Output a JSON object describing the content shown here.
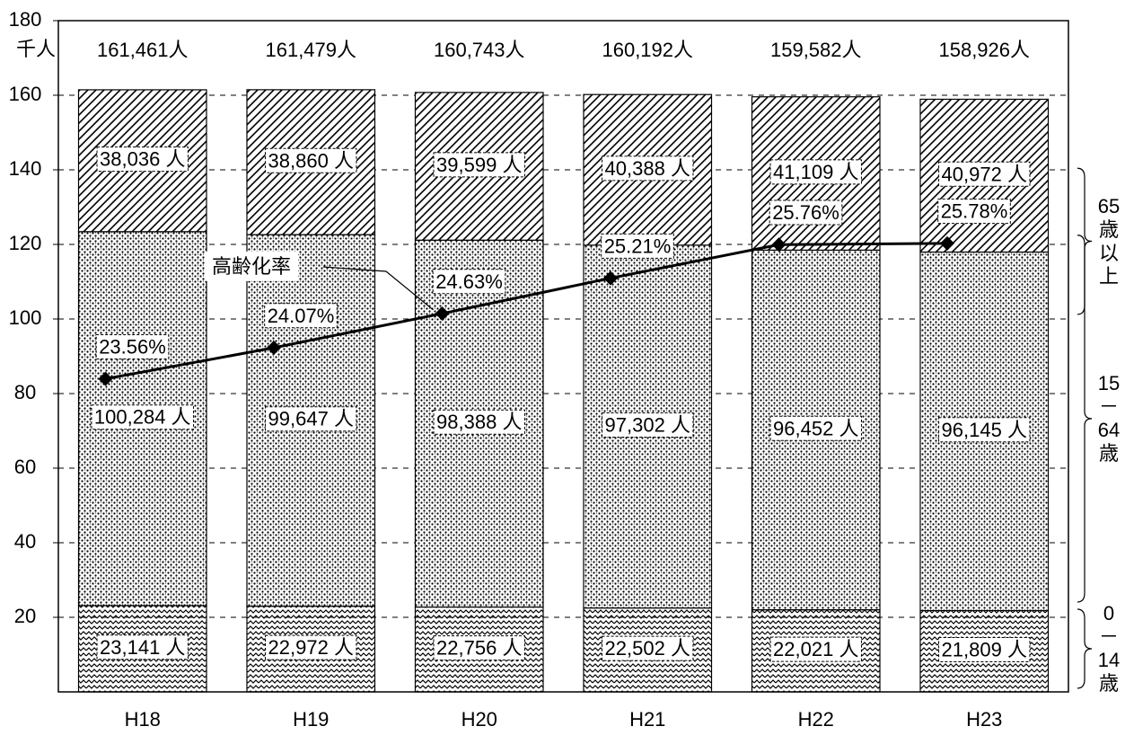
{
  "chart_data": {
    "type": "bar",
    "stacked": true,
    "y_unit_label": "千人",
    "categories": [
      "H18",
      "H19",
      "H20",
      "H21",
      "H22",
      "H23"
    ],
    "series": [
      {
        "name": "0－14歳",
        "color": "#000000",
        "values": [
          23.141,
          22.972,
          22.756,
          22.502,
          22.021,
          21.809
        ],
        "value_labels": [
          "23,141 人",
          "22,972 人",
          "22,756 人",
          "22,502 人",
          "22,021 人",
          "21,809 人"
        ]
      },
      {
        "name": "15－64歳",
        "color": "#000000",
        "values": [
          100.284,
          99.647,
          98.388,
          97.302,
          96.452,
          96.145
        ],
        "value_labels": [
          "100,284 人",
          "99,647 人",
          "98,388 人",
          "97,302 人",
          "96,452 人",
          "96,145 人"
        ]
      },
      {
        "name": "65歳以上",
        "color": "#000000",
        "values": [
          38.036,
          38.86,
          39.599,
          40.388,
          41.109,
          40.972
        ],
        "value_labels": [
          "38,036 人",
          "38,860 人",
          "39,599 人",
          "40,388 人",
          "41,109 人",
          "40,972 人"
        ]
      },
      {
        "name": "高齢化率",
        "type": "line",
        "axis": "y2",
        "color": "#000000",
        "values": [
          23.56,
          24.07,
          24.63,
          25.21,
          25.76,
          25.78
        ],
        "value_labels": [
          "23.56%",
          "24.07%",
          "24.63%",
          "25.21%",
          "25.76%",
          "25.78%"
        ]
      }
    ],
    "totals": [
      161.461,
      161.479,
      160.743,
      160.192,
      159.582,
      158.926
    ],
    "total_labels": [
      "161,461人",
      "161,479人",
      "160,743人",
      "160,192人",
      "159,582人",
      "158,926人"
    ],
    "ylim": [
      0,
      180
    ],
    "yticks": [
      20,
      40,
      60,
      80,
      100,
      120,
      140,
      160,
      180
    ],
    "y2lim": [
      18.43,
      29.43
    ],
    "grid": true
  }
}
